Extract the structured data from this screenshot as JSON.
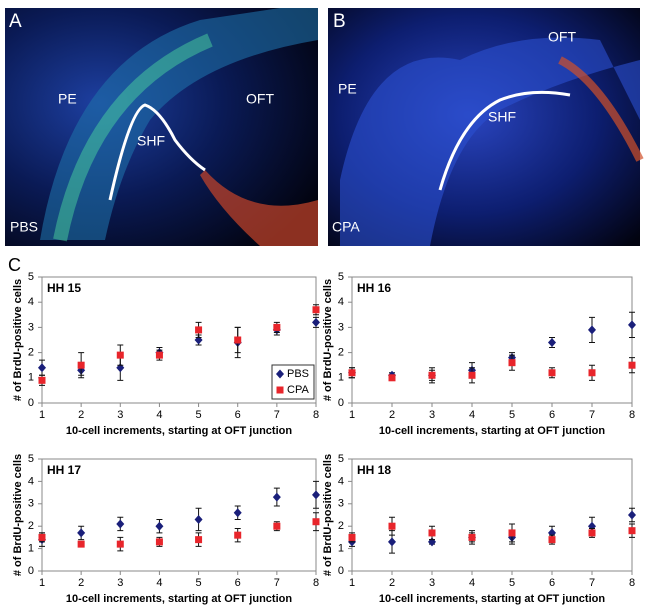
{
  "panels": [
    {
      "letter": "A",
      "labels": [
        "PE",
        "SHF",
        "OFT"
      ],
      "treatment": "PBS"
    },
    {
      "letter": "B",
      "labels": [
        "PE",
        "OFT",
        "SHF"
      ],
      "treatment": "CPA"
    }
  ],
  "charts_letter": "C",
  "chart_data": [
    {
      "type": "scatter",
      "title": "HH 15",
      "ylabel": "# of BrdU-positive cells",
      "xlabel": "10-cell increments, starting at OFT junction",
      "x": [
        1,
        2,
        3,
        4,
        5,
        6,
        7,
        8
      ],
      "xlim": [
        1,
        8
      ],
      "xticks": [
        1,
        2,
        3,
        4,
        5,
        6,
        7,
        8
      ],
      "ylim": [
        0,
        5
      ],
      "yticks": [
        0,
        1,
        2,
        3,
        4,
        5
      ],
      "legend": "lower right",
      "series": [
        {
          "name": "PBS",
          "color": "#1a1f7a",
          "marker": "diamond",
          "values": [
            1.4,
            1.3,
            1.4,
            2.0,
            2.5,
            2.4,
            2.9,
            3.2
          ],
          "errors": [
            0.3,
            0.2,
            0.5,
            0.2,
            0.2,
            0.6,
            0.2,
            0.2
          ]
        },
        {
          "name": "CPA",
          "color": "#e8252b",
          "marker": "square",
          "values": [
            0.9,
            1.5,
            1.9,
            1.9,
            2.9,
            2.5,
            3.0,
            3.7
          ],
          "errors": [
            0.2,
            0.5,
            0.4,
            0.2,
            0.3,
            0.5,
            0.2,
            0.2
          ]
        }
      ]
    },
    {
      "type": "scatter",
      "title": "HH 16",
      "ylabel": "# of BrdU-positive cells",
      "xlabel": "10-cell increments, starting at OFT junction",
      "x": [
        1,
        2,
        3,
        4,
        5,
        6,
        7,
        8
      ],
      "xlim": [
        1,
        8
      ],
      "xticks": [
        1,
        2,
        3,
        4,
        5,
        6,
        7,
        8
      ],
      "ylim": [
        0,
        5
      ],
      "yticks": [
        0,
        1,
        2,
        3,
        4,
        5
      ],
      "series": [
        {
          "color": "#1a1f7a",
          "marker": "diamond",
          "values": [
            1.2,
            1.1,
            1.1,
            1.3,
            1.8,
            2.4,
            2.9,
            3.1
          ],
          "errors": [
            0.2,
            0.1,
            0.2,
            0.3,
            0.2,
            0.2,
            0.5,
            0.5
          ]
        },
        {
          "color": "#e8252b",
          "marker": "square",
          "values": [
            1.2,
            1.0,
            1.1,
            1.1,
            1.6,
            1.2,
            1.2,
            1.5
          ],
          "errors": [
            0.2,
            0.1,
            0.3,
            0.3,
            0.3,
            0.2,
            0.3,
            0.3
          ]
        }
      ]
    },
    {
      "type": "scatter",
      "title": "HH 17",
      "ylabel": "# of BrdU-positive cells",
      "xlabel": "10-cell increments, starting at OFT junction",
      "x": [
        1,
        2,
        3,
        4,
        5,
        6,
        7,
        8
      ],
      "xlim": [
        1,
        8
      ],
      "xticks": [
        1,
        2,
        3,
        4,
        5,
        6,
        7,
        8
      ],
      "ylim": [
        0,
        5
      ],
      "yticks": [
        0,
        1,
        2,
        3,
        4,
        5
      ],
      "series": [
        {
          "color": "#1a1f7a",
          "marker": "diamond",
          "values": [
            1.4,
            1.7,
            2.1,
            2.0,
            2.3,
            2.6,
            3.3,
            3.4
          ],
          "errors": [
            0.3,
            0.3,
            0.3,
            0.3,
            0.5,
            0.3,
            0.4,
            0.6
          ]
        },
        {
          "color": "#e8252b",
          "marker": "square",
          "values": [
            1.5,
            1.2,
            1.2,
            1.3,
            1.4,
            1.6,
            2.0,
            2.2
          ],
          "errors": [
            0.2,
            0.1,
            0.3,
            0.2,
            0.3,
            0.3,
            0.2,
            0.4
          ]
        }
      ]
    },
    {
      "type": "scatter",
      "title": "HH 18",
      "ylabel": "# of BrdU-positive cells",
      "xlabel": "10-cell increments, starting at OFT junction",
      "x": [
        1,
        2,
        3,
        4,
        5,
        6,
        7,
        8
      ],
      "xlim": [
        1,
        8
      ],
      "xticks": [
        1,
        2,
        3,
        4,
        5,
        6,
        7,
        8
      ],
      "ylim": [
        0,
        5
      ],
      "yticks": [
        0,
        1,
        2,
        3,
        4,
        5
      ],
      "series": [
        {
          "color": "#1a1f7a",
          "marker": "diamond",
          "values": [
            1.3,
            1.3,
            1.3,
            1.5,
            1.5,
            1.7,
            2.0,
            2.5
          ],
          "errors": [
            0.2,
            0.5,
            0.1,
            0.2,
            0.3,
            0.3,
            0.4,
            0.3
          ]
        },
        {
          "color": "#e8252b",
          "marker": "square",
          "values": [
            1.5,
            2.0,
            1.7,
            1.5,
            1.7,
            1.4,
            1.7,
            1.8
          ],
          "errors": [
            0.2,
            0.4,
            0.3,
            0.3,
            0.4,
            0.2,
            0.2,
            0.3
          ]
        }
      ]
    }
  ]
}
